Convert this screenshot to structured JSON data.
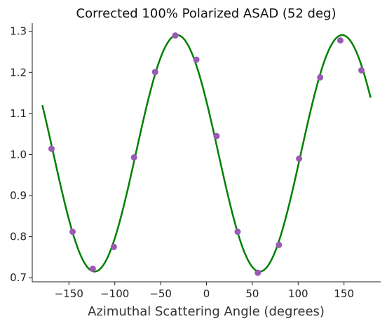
{
  "chart_data": {
    "type": "scatter",
    "title": "Corrected 100% Polarized ASAD (52 deg)",
    "xlabel": "Azimuthal Scattering Angle (degrees)",
    "ylabel": "",
    "xlim": [
      -190,
      190
    ],
    "ylim": [
      0.69,
      1.32
    ],
    "x_ticks": [
      -150,
      -100,
      -50,
      0,
      50,
      100,
      150
    ],
    "x_tick_labels": [
      "−150",
      "−100",
      "−50",
      "0",
      "50",
      "100",
      "150"
    ],
    "y_ticks": [
      0.7,
      0.8,
      0.9,
      1.0,
      1.1,
      1.2,
      1.3
    ],
    "y_tick_labels": [
      "0.7",
      "0.8",
      "0.9",
      "1.0",
      "1.1",
      "1.2",
      "1.3"
    ],
    "grid": false,
    "series": [
      {
        "kind": "scatter",
        "color": "#9b59b6",
        "x": [
          -169,
          -146,
          -124,
          -101,
          -79,
          -56,
          -34,
          -11,
          11,
          34,
          56,
          79,
          101,
          124,
          146,
          169
        ],
        "y": [
          1.014,
          0.812,
          0.722,
          0.775,
          0.993,
          1.201,
          1.29,
          1.231,
          1.045,
          0.812,
          0.712,
          0.78,
          0.99,
          1.188,
          1.278,
          1.205
        ]
      },
      {
        "kind": "line",
        "color": "#008000",
        "fit": {
          "offset": 1.003,
          "amplitude": 0.288,
          "period_deg": 180,
          "peak_deg": -32
        },
        "x_range": [
          -179,
          179
        ]
      }
    ]
  }
}
